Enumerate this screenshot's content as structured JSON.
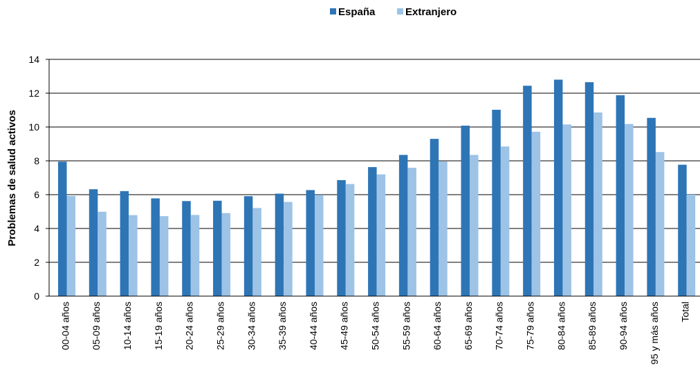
{
  "chart_data": {
    "type": "bar",
    "title": "",
    "xlabel": "",
    "ylabel": "Problemas de salud activos",
    "ylim": [
      0,
      14
    ],
    "yticks": [
      0,
      2,
      4,
      6,
      8,
      10,
      12,
      14
    ],
    "grid": true,
    "legend_position": "top-center",
    "categories": [
      "00-04 años",
      "05-09 años",
      "10-14 años",
      "15-19 años",
      "20-24 años",
      "25-29 años",
      "30-34 años",
      "35-39 años",
      "40-44 años",
      "45-49 años",
      "50-54 años",
      "55-59 años",
      "60-64 años",
      "65-69 años",
      "70-74 años",
      "75-79 años",
      "80-84 años",
      "85-89 años",
      "90-94 años",
      "95 y más años",
      "Total"
    ],
    "series": [
      {
        "name": "España",
        "color": "#2e75b6",
        "values": [
          7.95,
          6.32,
          6.21,
          5.78,
          5.62,
          5.64,
          5.91,
          6.06,
          6.27,
          6.86,
          7.63,
          8.35,
          9.3,
          10.08,
          11.02,
          12.44,
          12.8,
          12.65,
          11.88,
          10.54,
          7.77
        ]
      },
      {
        "name": "Extranjero",
        "color": "#9dc3e6",
        "values": [
          5.92,
          4.99,
          4.79,
          4.73,
          4.8,
          4.91,
          5.21,
          5.57,
          5.99,
          6.63,
          7.2,
          7.59,
          7.96,
          8.35,
          8.85,
          9.72,
          10.15,
          10.86,
          10.18,
          8.52,
          6.0
        ]
      }
    ]
  }
}
